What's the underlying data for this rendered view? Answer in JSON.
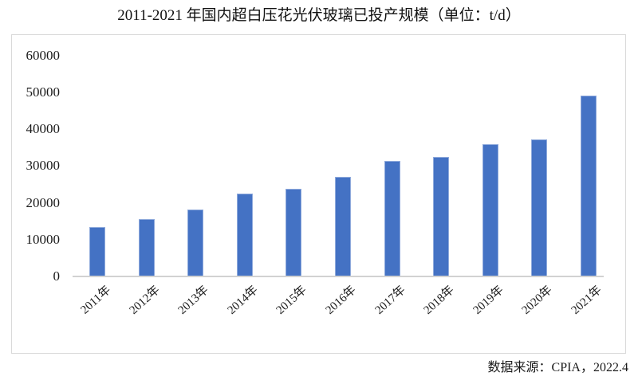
{
  "chart_data": {
    "type": "bar",
    "title": "2011-2021 年国内超白压花光伏玻璃已投产规模（单位：t/d）",
    "categories": [
      "2011年",
      "2012年",
      "2013年",
      "2014年",
      "2015年",
      "2016年",
      "2017年",
      "2018年",
      "2019年",
      "2020年",
      "2021年"
    ],
    "values": [
      13400,
      15500,
      18200,
      22500,
      23900,
      27100,
      31500,
      32500,
      36000,
      37200,
      49100
    ],
    "xlabel": "",
    "ylabel": "",
    "ylim": [
      0,
      60000
    ],
    "yticks": [
      0,
      10000,
      20000,
      30000,
      40000,
      50000,
      60000
    ],
    "grid": false,
    "legend": "none",
    "bar_color": "#4472C4",
    "bar_edge_color": "#8faadc",
    "axis_line_color": "#d2d2d2",
    "frame_border_color": "#d9d9d9",
    "source_note": "数据来源：CPIA，2022.4"
  }
}
